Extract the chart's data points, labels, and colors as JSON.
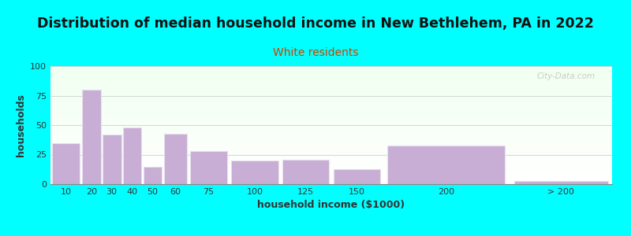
{
  "title": "Distribution of median household income in New Bethlehem, PA in 2022",
  "subtitle": "White residents",
  "xlabel": "household income ($1000)",
  "ylabel": "households",
  "background_color": "#00FFFF",
  "bar_color": "#c8aed4",
  "bar_edge_color": "#e8e0ee",
  "title_fontsize": 12.5,
  "subtitle_fontsize": 10,
  "subtitle_color": "#cc4400",
  "xlabel_fontsize": 9,
  "ylabel_fontsize": 9,
  "tick_fontsize": 8,
  "ylim": [
    0,
    100
  ],
  "yticks": [
    0,
    25,
    50,
    75,
    100
  ],
  "watermark": "City-Data.com",
  "grid_color": "#bbbbbb",
  "grid_alpha": 0.6,
  "bin_edges": [
    0,
    15,
    25,
    35,
    45,
    55,
    67.5,
    87.5,
    112.5,
    137.5,
    162.5,
    225,
    275
  ],
  "bin_labels": [
    "10",
    "20",
    "30",
    "40",
    "50",
    "60",
    "75",
    "100",
    "125",
    "150",
    "200",
    "> 200"
  ],
  "values": [
    35,
    80,
    42,
    48,
    15,
    43,
    28,
    20,
    21,
    13,
    33,
    3
  ]
}
